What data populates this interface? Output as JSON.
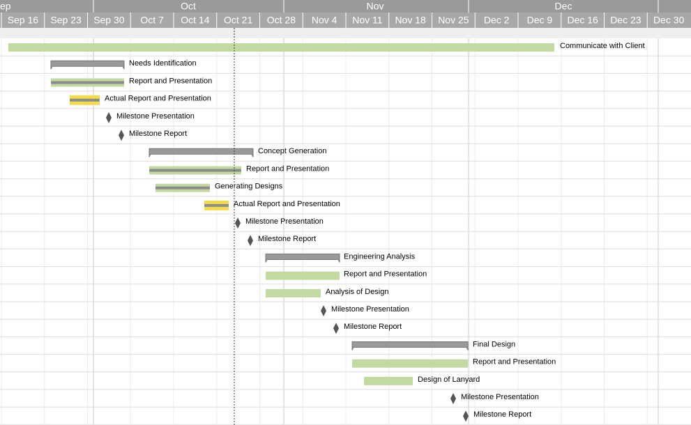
{
  "months": [
    "ep",
    "Oct",
    "Nov",
    "Dec"
  ],
  "weeks": [
    "Sep 16",
    "Sep 23",
    "Sep 30",
    "Oct 7",
    "Oct 14",
    "Oct 21",
    "Oct 28",
    "Nov 4",
    "Nov 11",
    "Nov 18",
    "Nov 25",
    "Dec 2",
    "Dec 9",
    "Dec 16",
    "Dec 23",
    "Dec 30"
  ],
  "tasks": [
    "Communicate with Client",
    "Needs Identification",
    "Report and Presentation",
    "Actual Report and Presentation",
    "Milestone Presentation",
    "Milestone Report",
    "Concept Generation",
    "Report and Presentation",
    "Generating Designs",
    "Actual Report and Presentation",
    "Milestone Presentation",
    "Milestone Report",
    "Engineering Analysis",
    "Report and Presentation",
    "Analysis of Design",
    "Milestone Presentation",
    "Milestone Report",
    "Final Design",
    "Report and Presentation",
    "Design of Lanyard",
    "Milestone Presentation",
    "Milestone Report"
  ]
}
